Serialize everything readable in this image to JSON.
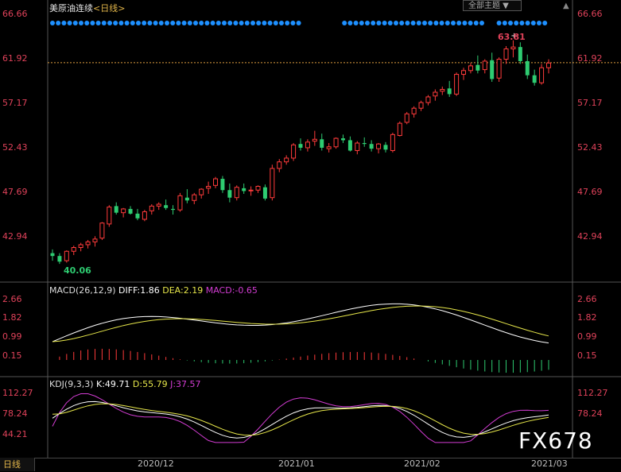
{
  "header": {
    "instrument": "美原油连续",
    "timeframe": "<日线>",
    "theme_button": "全部主题 ▼",
    "scroll_up": "▲"
  },
  "price_axis": [
    "66.66",
    "61.92",
    "57.17",
    "52.43",
    "47.69",
    "42.94"
  ],
  "annotations": {
    "high": "63.81",
    "low": "40.06"
  },
  "macd": {
    "label": "MACD(26,12,9)",
    "diff": "DIFF:1.86",
    "dea": "DEA:2.19",
    "macd": "MACD:-0.65",
    "axis": [
      "2.66",
      "1.82",
      "0.99",
      "0.15"
    ]
  },
  "kdj": {
    "label": "KDJ(9,3,3)",
    "k": "K:49.71",
    "d": "D:55.79",
    "j": "J:37.57",
    "axis": [
      "112.27",
      "78.24",
      "44.21"
    ]
  },
  "dates": [
    "2020/12",
    "2021/01",
    "2021/02",
    "2021/03"
  ],
  "period_tab": "日线",
  "watermark": "FX678",
  "colors": {
    "up": "#ff3b3b",
    "down": "#2ecc71",
    "dots": "#1e90ff",
    "diff": "#ffffff",
    "dea": "#e6e64a",
    "kdj_j": "#d23cd2"
  },
  "chart_data": {
    "type": "candlestick",
    "title": "美原油连续 <日线>",
    "ylim": [
      40.06,
      66.66
    ],
    "candles_ohlc": [
      [
        41.2,
        41.6,
        40.4,
        40.9
      ],
      [
        40.9,
        41.2,
        40.06,
        40.3
      ],
      [
        40.4,
        41.5,
        40.2,
        41.4
      ],
      [
        41.4,
        42.0,
        41.0,
        41.8
      ],
      [
        41.8,
        42.3,
        41.4,
        42.1
      ],
      [
        42.1,
        42.6,
        41.7,
        42.4
      ],
      [
        42.4,
        43.0,
        41.9,
        42.7
      ],
      [
        42.8,
        44.5,
        42.6,
        44.4
      ],
      [
        44.3,
        46.3,
        44.0,
        46.1
      ],
      [
        46.2,
        46.6,
        45.3,
        45.5
      ],
      [
        45.5,
        46.0,
        45.0,
        45.9
      ],
      [
        45.9,
        46.2,
        45.3,
        45.4
      ],
      [
        45.4,
        45.9,
        44.7,
        44.9
      ],
      [
        44.8,
        45.8,
        44.6,
        45.6
      ],
      [
        45.7,
        46.4,
        45.3,
        46.2
      ],
      [
        46.2,
        46.6,
        45.8,
        46.4
      ],
      [
        46.3,
        46.9,
        45.8,
        46.0
      ],
      [
        45.9,
        46.3,
        45.3,
        45.8
      ],
      [
        45.8,
        47.6,
        45.6,
        47.3
      ],
      [
        47.1,
        48.0,
        46.5,
        46.8
      ],
      [
        46.8,
        47.6,
        46.4,
        47.4
      ],
      [
        47.4,
        48.1,
        47.0,
        48.0
      ],
      [
        48.1,
        48.8,
        47.5,
        48.3
      ],
      [
        48.4,
        49.3,
        48.1,
        49.1
      ],
      [
        49.1,
        49.4,
        47.6,
        47.9
      ],
      [
        47.9,
        48.6,
        46.6,
        47.1
      ],
      [
        47.1,
        48.4,
        46.8,
        48.2
      ],
      [
        48.1,
        48.6,
        47.5,
        47.8
      ],
      [
        47.9,
        48.3,
        47.3,
        47.9
      ],
      [
        47.9,
        48.4,
        47.6,
        48.3
      ],
      [
        48.2,
        48.5,
        46.8,
        47.0
      ],
      [
        47.1,
        50.6,
        46.8,
        50.2
      ],
      [
        50.2,
        51.2,
        49.8,
        50.9
      ],
      [
        50.9,
        51.6,
        50.6,
        51.3
      ],
      [
        51.3,
        52.9,
        51.0,
        52.7
      ],
      [
        52.8,
        53.4,
        52.1,
        52.4
      ],
      [
        52.4,
        53.3,
        52.0,
        53.0
      ],
      [
        53.1,
        54.2,
        52.6,
        53.3
      ],
      [
        53.3,
        53.9,
        52.1,
        52.4
      ],
      [
        52.3,
        52.9,
        51.9,
        52.5
      ],
      [
        52.5,
        53.5,
        52.3,
        53.4
      ],
      [
        53.4,
        53.8,
        52.9,
        53.2
      ],
      [
        53.2,
        53.6,
        52.0,
        52.1
      ],
      [
        52.1,
        53.1,
        51.7,
        52.9
      ],
      [
        52.9,
        53.5,
        52.5,
        52.8
      ],
      [
        52.8,
        53.2,
        52.0,
        52.3
      ],
      [
        52.3,
        52.9,
        51.8,
        52.8
      ],
      [
        52.7,
        53.0,
        51.9,
        52.2
      ],
      [
        52.1,
        54.0,
        51.9,
        53.8
      ],
      [
        53.7,
        55.2,
        53.6,
        55.0
      ],
      [
        55.1,
        56.2,
        54.9,
        56.0
      ],
      [
        56.0,
        56.8,
        55.6,
        56.6
      ],
      [
        56.6,
        57.4,
        56.3,
        57.2
      ],
      [
        57.2,
        58.0,
        56.9,
        57.8
      ],
      [
        57.9,
        58.6,
        57.4,
        58.3
      ],
      [
        58.4,
        58.9,
        58.0,
        58.6
      ],
      [
        58.7,
        59.5,
        57.8,
        58.1
      ],
      [
        58.1,
        60.4,
        57.9,
        60.2
      ],
      [
        60.2,
        60.9,
        59.6,
        60.6
      ],
      [
        60.6,
        61.4,
        60.3,
        61.1
      ],
      [
        61.2,
        62.2,
        60.3,
        60.6
      ],
      [
        60.7,
        61.8,
        60.3,
        61.6
      ],
      [
        61.7,
        62.5,
        59.4,
        59.7
      ],
      [
        59.8,
        62.0,
        59.4,
        61.8
      ],
      [
        61.8,
        63.2,
        61.3,
        62.9
      ],
      [
        62.9,
        63.81,
        62.0,
        63.1
      ],
      [
        63.1,
        63.6,
        61.3,
        61.6
      ],
      [
        61.6,
        62.3,
        59.7,
        60.1
      ],
      [
        60.1,
        60.7,
        59.0,
        59.3
      ],
      [
        59.3,
        61.3,
        59.1,
        60.9
      ],
      [
        60.9,
        61.8,
        60.3,
        61.4
      ]
    ],
    "macd": {
      "diff": 1.86,
      "dea": 2.19,
      "macd": -0.65
    },
    "kdj": {
      "k": 49.71,
      "d": 55.79,
      "j": 37.57
    },
    "dates": [
      "2020/12",
      "2021/01",
      "2021/02",
      "2021/03"
    ]
  }
}
